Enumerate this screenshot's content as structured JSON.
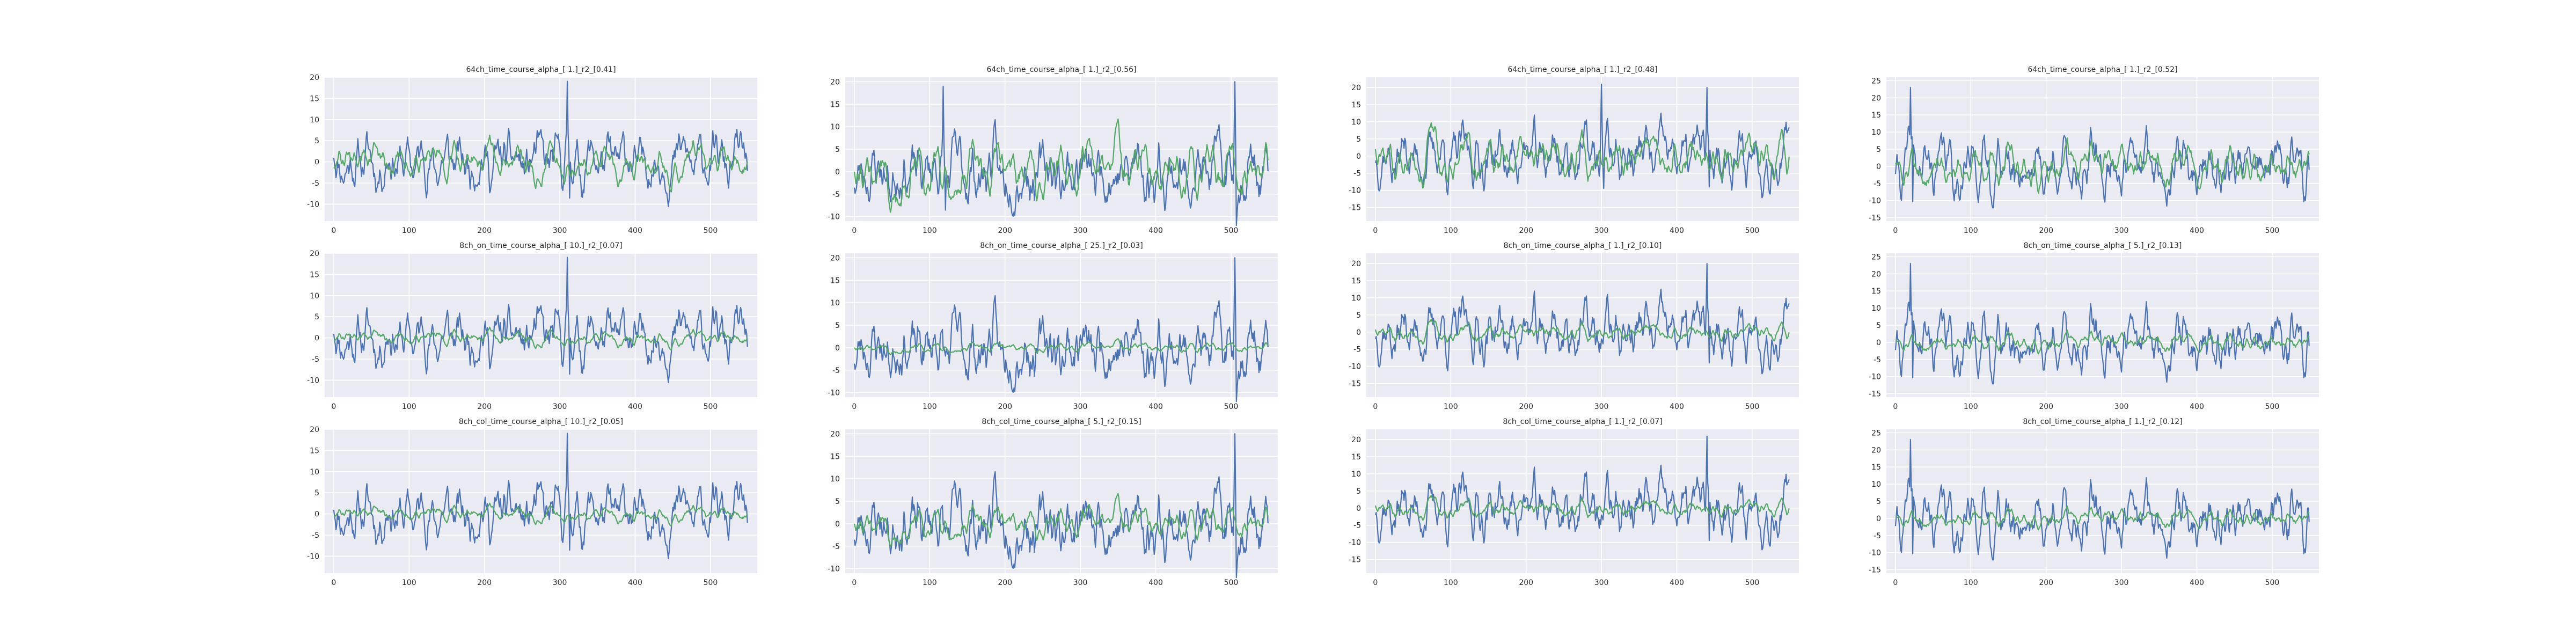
{
  "colors": {
    "background": "#ffffff",
    "axes_face": "#eaeaf2",
    "grid": "#ffffff",
    "series_blue": "#4c72b0",
    "series_green": "#55a868",
    "text": "#262626"
  },
  "chart_data": [
    {
      "panel": "r0c0",
      "type": "line",
      "title": "64ch_time_course_alpha_[ 1.]_r2_[0.41]",
      "xlim": [
        -12,
        562
      ],
      "ylim": [
        -14,
        20
      ],
      "xticks": [
        0,
        100,
        200,
        300,
        400,
        500
      ],
      "yticks": [
        -10,
        -5,
        0,
        5,
        10,
        15,
        20
      ],
      "grid": true,
      "seed": 11,
      "amp_blue": 7,
      "amp_green": 5,
      "spikes": [
        [
          310,
          19
        ]
      ],
      "series": [
        {
          "color": "#4c72b0",
          "values": []
        },
        {
          "color": "#55a868",
          "values": []
        }
      ]
    },
    {
      "panel": "r0c1",
      "type": "line",
      "title": "64ch_time_course_alpha_[ 1.]_r2_[0.56]",
      "xlim": [
        -12,
        562
      ],
      "ylim": [
        -11,
        21
      ],
      "xticks": [
        0,
        100,
        200,
        300,
        400,
        500
      ],
      "yticks": [
        -10,
        -5,
        0,
        5,
        10,
        15,
        20
      ],
      "grid": true,
      "seed": 23,
      "amp_blue": 8,
      "amp_green": 7,
      "spikes": [
        [
          505,
          20
        ],
        [
          118,
          19
        ]
      ],
      "series": [
        {
          "color": "#4c72b0",
          "values": []
        },
        {
          "color": "#55a868",
          "values": []
        }
      ]
    },
    {
      "panel": "r0c2",
      "type": "line",
      "title": "64ch_time_course_alpha_[ 1.]_r2_[0.48]",
      "xlim": [
        -12,
        562
      ],
      "ylim": [
        -19,
        23
      ],
      "xticks": [
        0,
        100,
        200,
        300,
        400,
        500
      ],
      "yticks": [
        -15,
        -10,
        -5,
        0,
        5,
        10,
        15,
        20
      ],
      "grid": true,
      "seed": 37,
      "amp_blue": 9,
      "amp_green": 8,
      "spikes": [
        [
          300,
          21
        ],
        [
          440,
          20
        ]
      ],
      "series": [
        {
          "color": "#4c72b0",
          "values": []
        },
        {
          "color": "#55a868",
          "values": []
        }
      ]
    },
    {
      "panel": "r0c3",
      "type": "line",
      "title": "64ch_time_course_alpha_[ 1.]_r2_[0.52]",
      "xlim": [
        -12,
        562
      ],
      "ylim": [
        -16,
        26
      ],
      "xticks": [
        0,
        100,
        200,
        300,
        400,
        500
      ],
      "yticks": [
        -15,
        -10,
        -5,
        0,
        5,
        10,
        15,
        20,
        25
      ],
      "grid": true,
      "seed": 41,
      "amp_blue": 9,
      "amp_green": 7,
      "spikes": [
        [
          20,
          23
        ]
      ],
      "series": [
        {
          "color": "#4c72b0",
          "values": []
        },
        {
          "color": "#55a868",
          "values": []
        }
      ]
    },
    {
      "panel": "r1c0",
      "type": "line",
      "title": "8ch_on_time_course_alpha_[ 10.]_r2_[0.07]",
      "xlim": [
        -12,
        562
      ],
      "ylim": [
        -14,
        20
      ],
      "xticks": [
        0,
        100,
        200,
        300,
        400,
        500
      ],
      "yticks": [
        -10,
        -5,
        0,
        5,
        10,
        15,
        20
      ],
      "grid": true,
      "seed": 11,
      "amp_blue": 7,
      "amp_green": 2,
      "spikes": [
        [
          310,
          19
        ]
      ],
      "series": [
        {
          "color": "#4c72b0",
          "values": []
        },
        {
          "color": "#55a868",
          "values": []
        }
      ]
    },
    {
      "panel": "r1c1",
      "type": "line",
      "title": "8ch_on_time_course_alpha_[ 25.]_r2_[0.03]",
      "xlim": [
        -12,
        562
      ],
      "ylim": [
        -11,
        21
      ],
      "xticks": [
        0,
        100,
        200,
        300,
        400,
        500
      ],
      "yticks": [
        -10,
        -5,
        0,
        5,
        10,
        15,
        20
      ],
      "grid": true,
      "seed": 23,
      "amp_blue": 8,
      "amp_green": 1.2,
      "spikes": [
        [
          505,
          20
        ]
      ],
      "series": [
        {
          "color": "#4c72b0",
          "values": []
        },
        {
          "color": "#55a868",
          "values": []
        }
      ]
    },
    {
      "panel": "r1c2",
      "type": "line",
      "title": "8ch_on_time_course_alpha_[ 1.]_r2_[0.10]",
      "xlim": [
        -12,
        562
      ],
      "ylim": [
        -19,
        23
      ],
      "xticks": [
        0,
        100,
        200,
        300,
        400,
        500
      ],
      "yticks": [
        -15,
        -10,
        -5,
        0,
        5,
        10,
        15,
        20
      ],
      "grid": true,
      "seed": 37,
      "amp_blue": 9,
      "amp_green": 3,
      "spikes": [
        [
          440,
          20
        ]
      ],
      "series": [
        {
          "color": "#4c72b0",
          "values": []
        },
        {
          "color": "#55a868",
          "values": []
        }
      ]
    },
    {
      "panel": "r1c3",
      "type": "line",
      "title": "8ch_on_time_course_alpha_[ 5.]_r2_[0.13]",
      "xlim": [
        -12,
        562
      ],
      "ylim": [
        -16,
        26
      ],
      "xticks": [
        0,
        100,
        200,
        300,
        400,
        500
      ],
      "yticks": [
        -15,
        -10,
        -5,
        0,
        5,
        10,
        15,
        20,
        25
      ],
      "grid": true,
      "seed": 41,
      "amp_blue": 9,
      "amp_green": 3,
      "spikes": [
        [
          20,
          23
        ]
      ],
      "series": [
        {
          "color": "#4c72b0",
          "values": []
        },
        {
          "color": "#55a868",
          "values": []
        }
      ]
    },
    {
      "panel": "r2c0",
      "type": "line",
      "title": "8ch_col_time_course_alpha_[ 10.]_r2_[0.05]",
      "xlim": [
        -12,
        562
      ],
      "ylim": [
        -14,
        20
      ],
      "xticks": [
        0,
        100,
        200,
        300,
        400,
        500
      ],
      "yticks": [
        -10,
        -5,
        0,
        5,
        10,
        15,
        20
      ],
      "grid": true,
      "seed": 11,
      "amp_blue": 7,
      "amp_green": 2,
      "spikes": [
        [
          310,
          19
        ]
      ],
      "series": [
        {
          "color": "#4c72b0",
          "values": []
        },
        {
          "color": "#55a868",
          "values": []
        }
      ]
    },
    {
      "panel": "r2c1",
      "type": "line",
      "title": "8ch_col_time_course_alpha_[ 5.]_r2_[0.15]",
      "xlim": [
        -12,
        562
      ],
      "ylim": [
        -11,
        21
      ],
      "xticks": [
        0,
        100,
        200,
        300,
        400,
        500
      ],
      "yticks": [
        -10,
        -5,
        0,
        5,
        10,
        15,
        20
      ],
      "grid": true,
      "seed": 23,
      "amp_blue": 8,
      "amp_green": 4,
      "spikes": [
        [
          505,
          20
        ]
      ],
      "series": [
        {
          "color": "#4c72b0",
          "values": []
        },
        {
          "color": "#55a868",
          "values": []
        }
      ]
    },
    {
      "panel": "r2c2",
      "type": "line",
      "title": "8ch_col_time_course_alpha_[ 1.]_r2_[0.07]",
      "xlim": [
        -12,
        562
      ],
      "ylim": [
        -19,
        23
      ],
      "xticks": [
        0,
        100,
        200,
        300,
        400,
        500
      ],
      "yticks": [
        -15,
        -10,
        -5,
        0,
        5,
        10,
        15,
        20
      ],
      "grid": true,
      "seed": 37,
      "amp_blue": 9,
      "amp_green": 3,
      "spikes": [
        [
          440,
          21
        ]
      ],
      "series": [
        {
          "color": "#4c72b0",
          "values": []
        },
        {
          "color": "#55a868",
          "values": []
        }
      ]
    },
    {
      "panel": "r2c3",
      "type": "line",
      "title": "8ch_col_time_course_alpha_[ 1.]_r2_[0.12]",
      "xlim": [
        -12,
        562
      ],
      "ylim": [
        -16,
        26
      ],
      "xticks": [
        0,
        100,
        200,
        300,
        400,
        500
      ],
      "yticks": [
        -15,
        -10,
        -5,
        0,
        5,
        10,
        15,
        20,
        25
      ],
      "grid": true,
      "seed": 41,
      "amp_blue": 9,
      "amp_green": 3,
      "spikes": [
        [
          20,
          23
        ]
      ],
      "series": [
        {
          "color": "#4c72b0",
          "values": []
        },
        {
          "color": "#55a868",
          "values": []
        }
      ]
    }
  ]
}
